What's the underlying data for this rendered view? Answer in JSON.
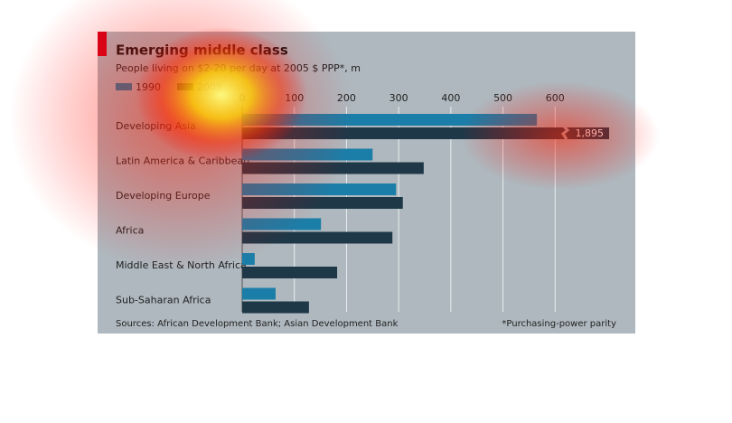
{
  "chart_data": {
    "type": "bar",
    "orientation": "horizontal",
    "title": "Emerging middle class",
    "subtitle": "People living on $2-20 per day at 2005 $ PPP*, m",
    "categories": [
      "Developing Asia",
      "Latin America & Caribbean",
      "Developing Europe",
      "Africa",
      "Middle East & North Africa",
      "Sub-Saharan Africa"
    ],
    "series": [
      {
        "name": "1990",
        "color": "#1b7ea8",
        "values": [
          565,
          250,
          295,
          151,
          24,
          64
        ]
      },
      {
        "name": "2008",
        "color": "#1e3848",
        "values": [
          1895,
          348,
          308,
          288,
          182,
          128
        ],
        "value_labels": [
          "1,895",
          null,
          null,
          null,
          null,
          null
        ]
      }
    ],
    "xlim": [
      0,
      700
    ],
    "xticks": [
      0,
      100,
      200,
      300,
      400,
      500,
      600
    ],
    "grid": true,
    "source": "Sources: African Development Bank; Asian Development Bank",
    "footnote": "*Purchasing-power parity"
  }
}
